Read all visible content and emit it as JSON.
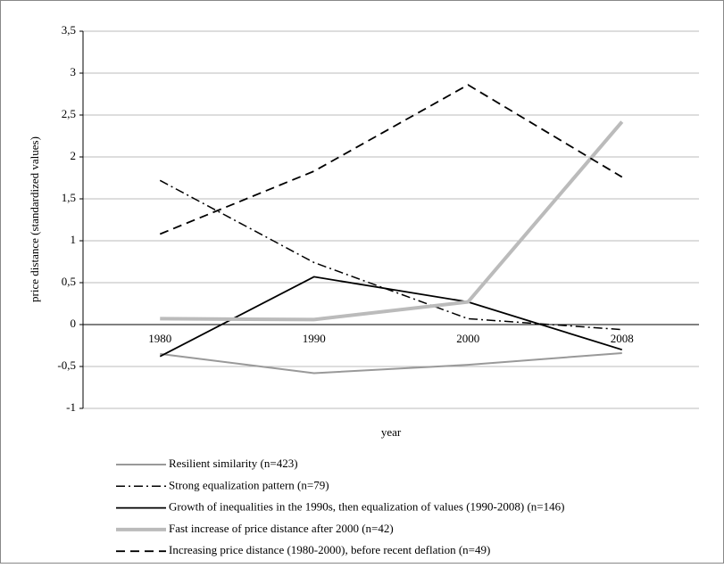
{
  "chart_data": {
    "type": "line",
    "ylabel": "price distance (standardized values)",
    "xlabel": "year",
    "categories": [
      "1980",
      "1990",
      "2000",
      "2008"
    ],
    "series": [
      {
        "name": "Resilient similarity (n=423)",
        "color": "#999999",
        "style": "solid",
        "width": 2,
        "values": [
          -0.35,
          -0.58,
          -0.48,
          -0.34
        ]
      },
      {
        "name": "Strong equalization pattern (n=79)",
        "color": "#000000",
        "style": "dashdot",
        "width": 1.5,
        "values": [
          1.72,
          0.74,
          0.07,
          -0.06
        ]
      },
      {
        "name": "Growth of inequalities in the 1990s, then equalization of values (1990-2008) (n=146)",
        "color": "#000000",
        "style": "solid",
        "width": 1.8,
        "values": [
          -0.38,
          0.57,
          0.27,
          -0.3
        ]
      },
      {
        "name": "Fast increase of price distance after 2000 (n=42)",
        "color": "#bbbbbb",
        "style": "solid",
        "width": 4,
        "values": [
          0.07,
          0.06,
          0.27,
          2.42
        ]
      },
      {
        "name": "Increasing price distance (1980-2000), before recent deflation  (n=49)",
        "color": "#000000",
        "style": "dashed",
        "width": 1.8,
        "values": [
          1.08,
          1.83,
          2.86,
          1.76
        ]
      }
    ],
    "ylim": [
      -1,
      3.5
    ],
    "yticks": [
      -1,
      {
        "value": -0.5,
        "label": "-0,5"
      },
      0,
      {
        "value": 0.5,
        "label": "0,5"
      },
      1,
      {
        "value": 1.5,
        "label": "1,5"
      },
      2,
      {
        "value": 2.5,
        "label": "2,5"
      },
      3,
      {
        "value": 3.5,
        "label": "3,5"
      }
    ],
    "grid": true,
    "legend": "bottom"
  }
}
